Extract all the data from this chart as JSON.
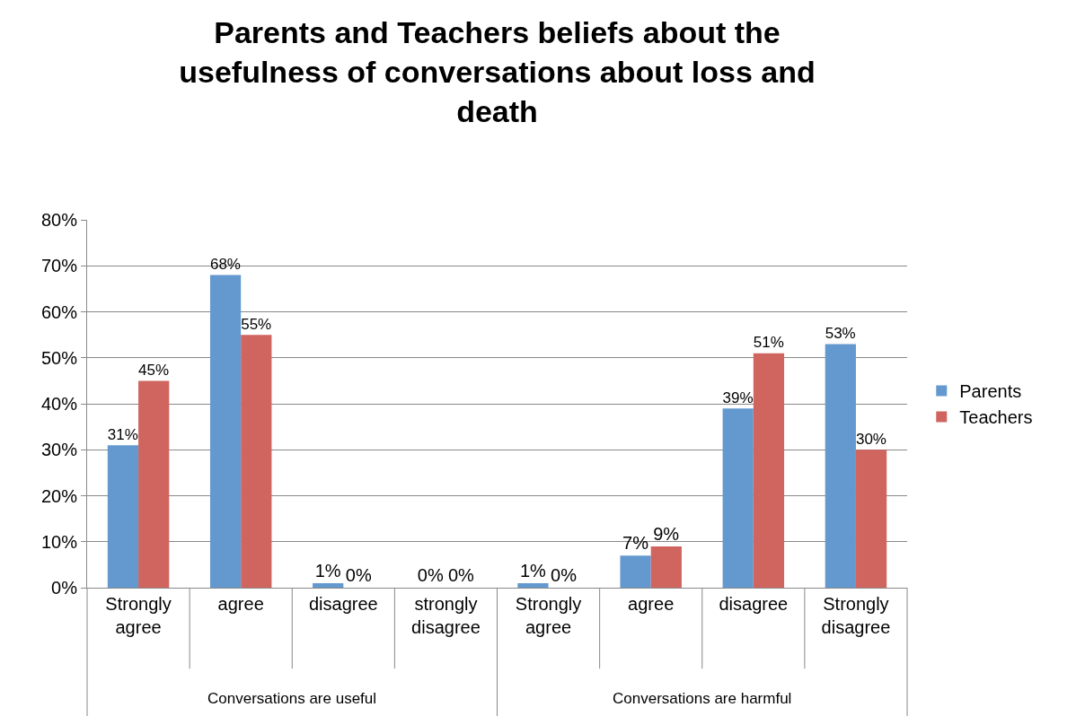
{
  "chart_data": {
    "type": "bar",
    "title": "Parents and Teachers beliefs about the usefulness of conversations about loss and death",
    "categories": [
      "Strongly agree",
      "agree",
      "disagree",
      "strongly disagree",
      "Strongly agree",
      "agree",
      "disagree",
      "Strongly disagree"
    ],
    "series": [
      {
        "name": "Parents",
        "color": "#6399cf",
        "values": [
          31,
          68,
          1,
          0,
          1,
          7,
          39,
          53
        ],
        "value_labels": [
          "31%",
          "68%",
          "1%",
          "0%",
          "1%",
          "7%",
          "39%",
          "53%"
        ]
      },
      {
        "name": "Teachers",
        "color": "#d0655f",
        "values": [
          45,
          55,
          0,
          0,
          0,
          9,
          51,
          30
        ],
        "value_labels": [
          "45%",
          "55%",
          "0%",
          "0%",
          "0%",
          "9%",
          "51%",
          "30%"
        ]
      }
    ],
    "ylim": [
      0,
      80
    ],
    "yticks": [
      {
        "value": 0,
        "label": "0%"
      },
      {
        "value": 10,
        "label": "10%"
      },
      {
        "value": 20,
        "label": "20%"
      },
      {
        "value": 30,
        "label": "30%"
      },
      {
        "value": 40,
        "label": "40%"
      },
      {
        "value": 50,
        "label": "50%"
      },
      {
        "value": 60,
        "label": "60%"
      },
      {
        "value": 70,
        "label": "70%"
      },
      {
        "value": 80,
        "label": "80%"
      }
    ],
    "grid": "y",
    "legend": "right",
    "annotations": [
      "Conversations are useful",
      "Conversations are harmful"
    ]
  }
}
